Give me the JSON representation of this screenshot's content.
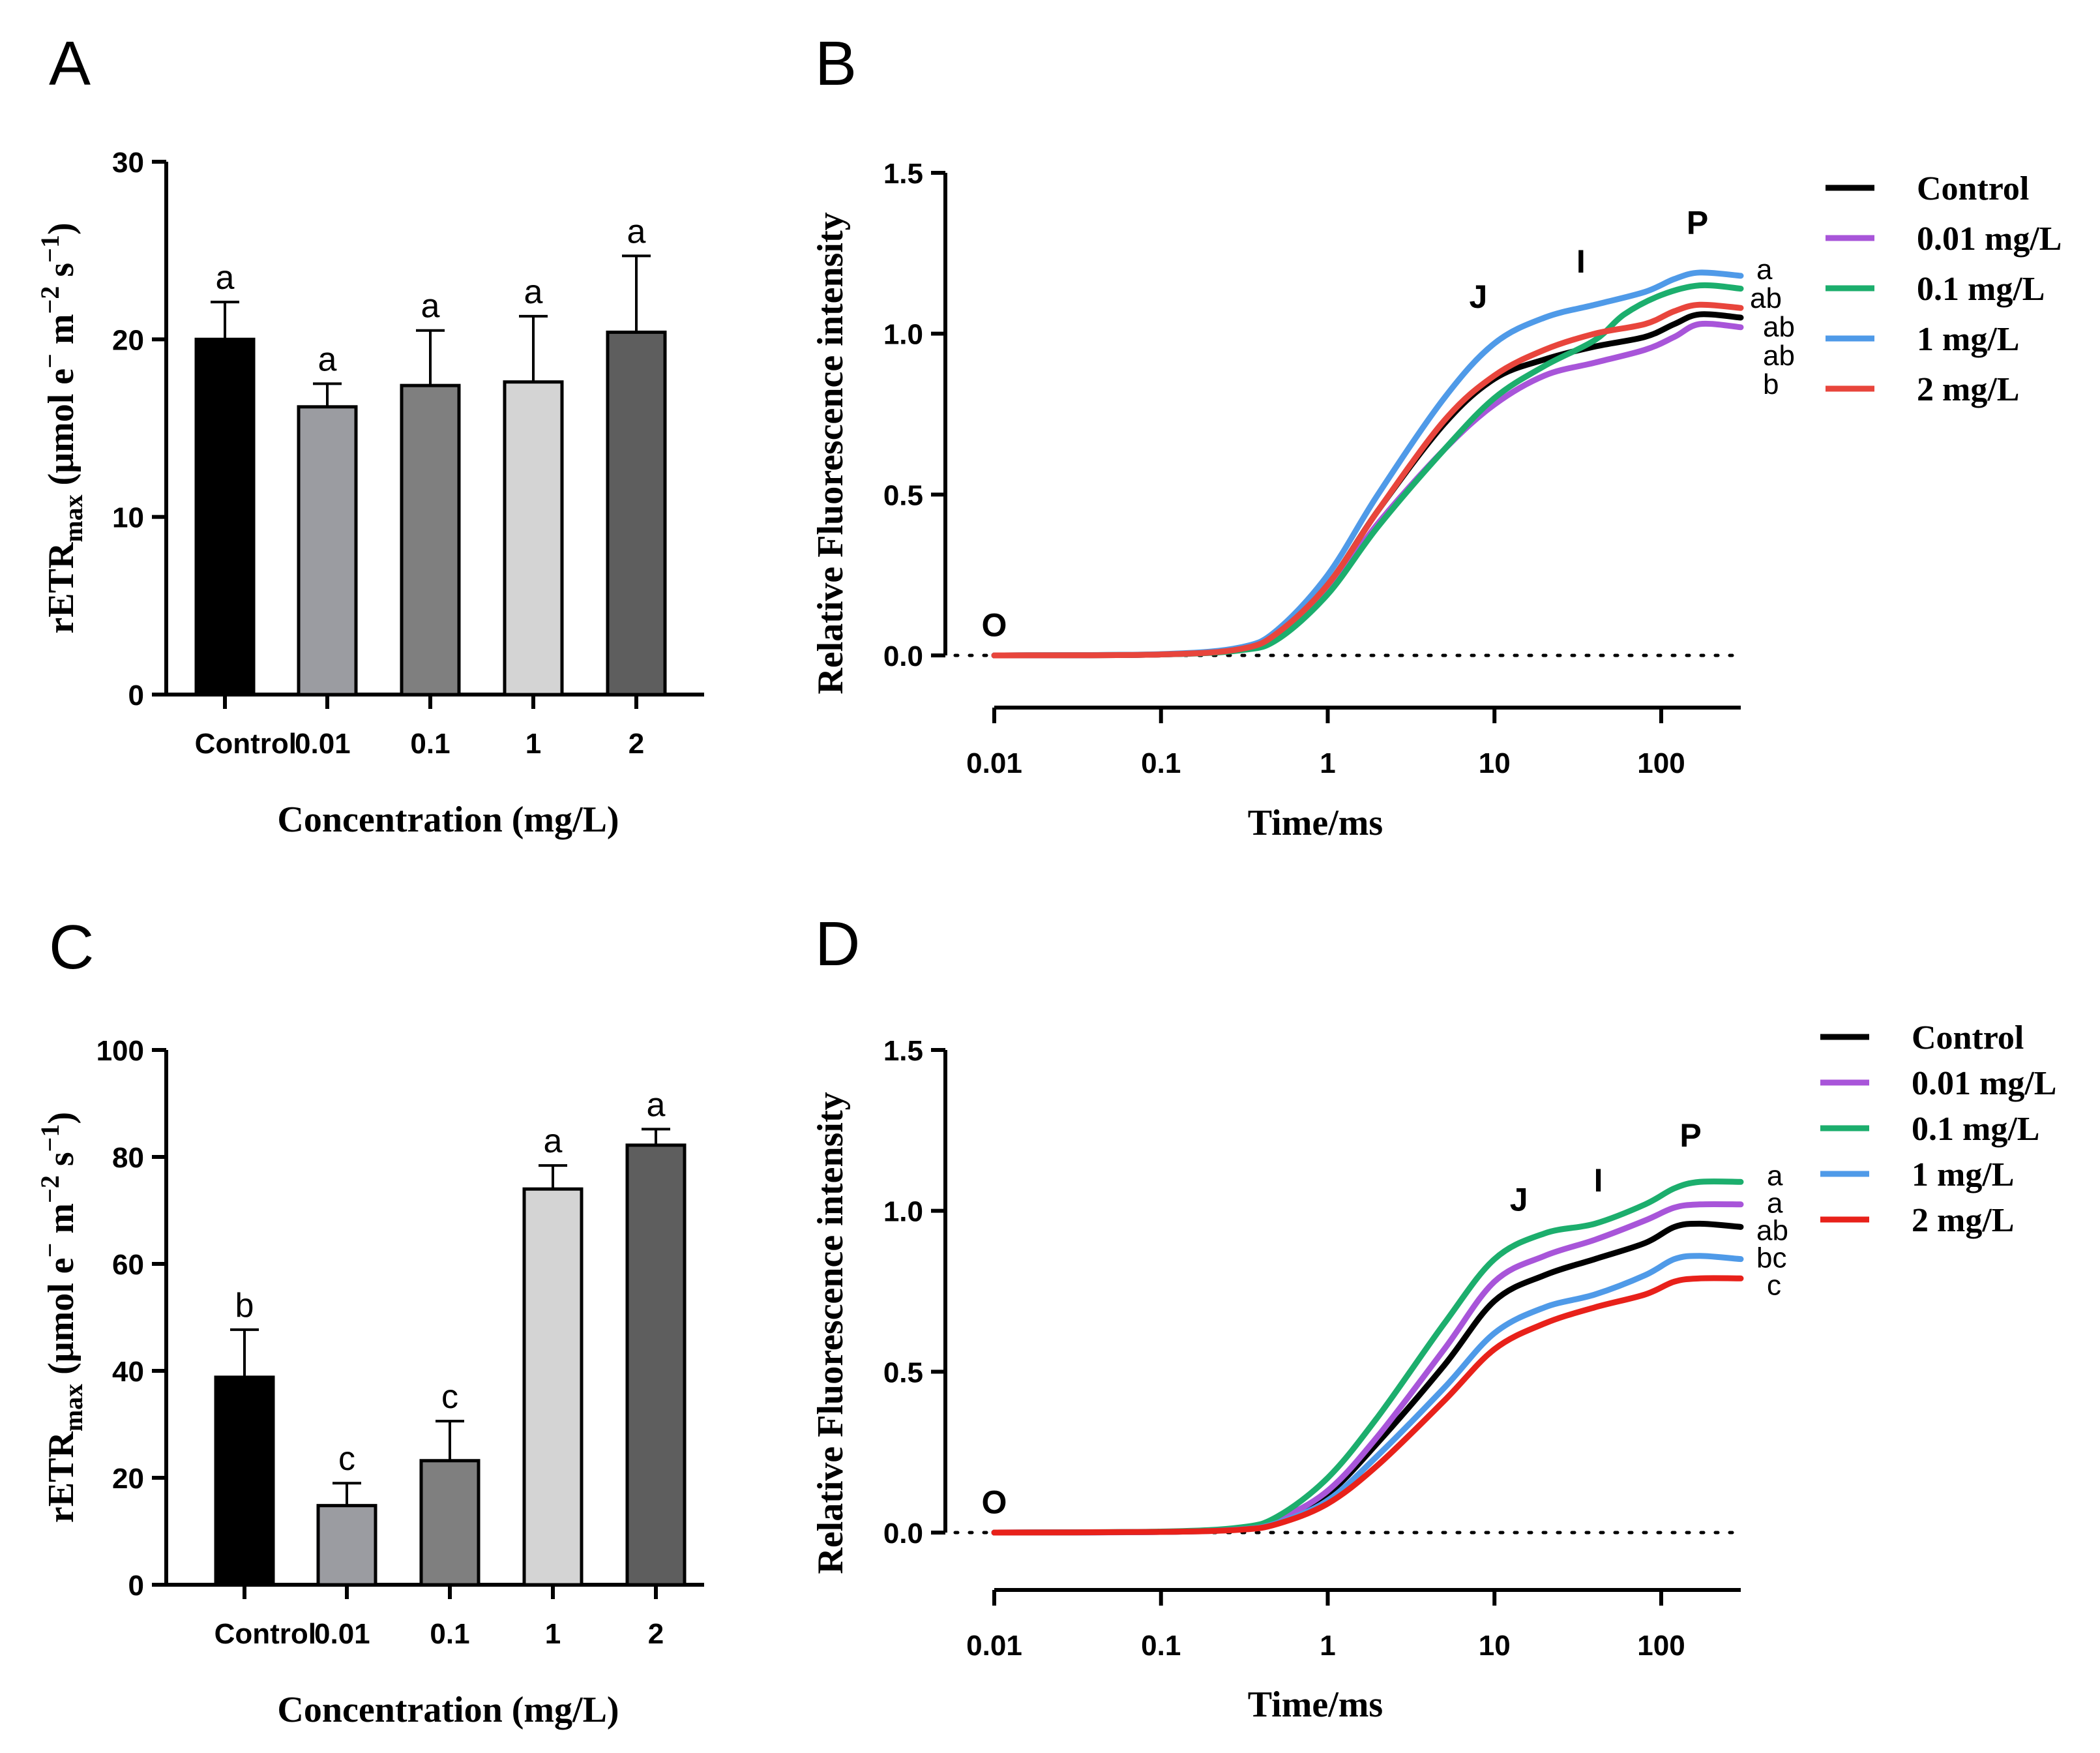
{
  "figure": {
    "panels": [
      "A",
      "B",
      "C",
      "D"
    ]
  },
  "chart_data": [
    {
      "panel": "A",
      "type": "bar",
      "ylabel_main": "rETR",
      "ylabel_sub": "max",
      "ylabel_unit": "(μmol e",
      "ylabel_unit2": " m",
      "ylabel_unit3": " s",
      "sup_minus": "−",
      "sup_m2": "−2",
      "sup_s1": "−1",
      "xlabel": "Concentration (mg/L)",
      "categories": [
        "Control",
        "0.01",
        "0.1",
        "1",
        "2"
      ],
      "values": [
        20.0,
        16.2,
        17.4,
        17.6,
        20.4
      ],
      "errors": [
        2.1,
        1.3,
        3.1,
        3.7,
        4.3
      ],
      "letters": [
        "a",
        "a",
        "a",
        "a",
        "a"
      ],
      "colors": [
        "#000000",
        "#9b9ca1",
        "#7f7f7f",
        "#d4d4d4",
        "#5e5e5e"
      ],
      "ylim": [
        0,
        30
      ],
      "yticks": [
        "0",
        "10",
        "20",
        "30"
      ]
    },
    {
      "panel": "B",
      "type": "line",
      "ylabel": "Relative Fluorescence intensity",
      "xlabel": "Time/ms",
      "xscale": "log",
      "xlim": [
        0.01,
        300
      ],
      "ylim": [
        0,
        1.5
      ],
      "xticks": [
        "0.01",
        "0.1",
        "1",
        "10",
        "100"
      ],
      "yticks": [
        "0.0",
        "0.5",
        "1.0",
        "1.5"
      ],
      "phases": [
        "O",
        "J",
        "I",
        "P"
      ],
      "series": [
        {
          "name": "Control",
          "color": "#000000",
          "x": [
            0.01,
            0.1,
            0.3,
            0.5,
            1,
            2,
            5,
            10,
            20,
            40,
            80,
            120,
            170,
            300
          ],
          "y": [
            0,
            0.003,
            0.02,
            0.07,
            0.22,
            0.45,
            0.72,
            0.86,
            0.92,
            0.96,
            0.99,
            1.03,
            1.06,
            1.05
          ]
        },
        {
          "name": "0.01 mg/L",
          "color": "#a855d9",
          "x": [
            0.01,
            0.1,
            0.3,
            0.5,
            1,
            2,
            5,
            10,
            20,
            40,
            80,
            120,
            170,
            300
          ],
          "y": [
            0,
            0.003,
            0.018,
            0.06,
            0.2,
            0.41,
            0.64,
            0.78,
            0.87,
            0.91,
            0.95,
            0.99,
            1.03,
            1.02
          ]
        },
        {
          "name": "0.1 mg/L",
          "color": "#1cae6d",
          "x": [
            0.01,
            0.1,
            0.3,
            0.5,
            1,
            2,
            5,
            10,
            20,
            40,
            60,
            100,
            170,
            300
          ],
          "y": [
            0,
            0.003,
            0.016,
            0.05,
            0.19,
            0.4,
            0.64,
            0.8,
            0.9,
            0.98,
            1.06,
            1.12,
            1.15,
            1.14
          ]
        },
        {
          "name": "1 mg/L",
          "color": "#4f9ae8",
          "x": [
            0.01,
            0.1,
            0.3,
            0.5,
            1,
            2,
            5,
            10,
            20,
            40,
            80,
            120,
            170,
            300
          ],
          "y": [
            0,
            0.004,
            0.025,
            0.08,
            0.25,
            0.5,
            0.8,
            0.97,
            1.05,
            1.09,
            1.13,
            1.17,
            1.19,
            1.18
          ]
        },
        {
          "name": "2 mg/L",
          "color": "#e8453c",
          "x": [
            0.01,
            0.1,
            0.3,
            0.5,
            1,
            2,
            5,
            10,
            20,
            40,
            80,
            120,
            170,
            300
          ],
          "y": [
            0,
            0.003,
            0.02,
            0.07,
            0.22,
            0.45,
            0.73,
            0.87,
            0.95,
            1.0,
            1.03,
            1.07,
            1.09,
            1.08
          ]
        }
      ],
      "end_letters": [
        "a",
        "ab",
        "ab",
        "ab",
        "b"
      ]
    },
    {
      "panel": "C",
      "type": "bar",
      "ylabel_main": "rETR",
      "ylabel_sub": "max",
      "ylabel_unit": "(μmol e",
      "ylabel_unit2": " m",
      "ylabel_unit3": " s",
      "sup_minus": "−",
      "sup_m2": "−2",
      "sup_s1": "−1",
      "xlabel": "Concentration (mg/L)",
      "categories": [
        "Control",
        "0.01",
        "0.1",
        "1",
        "2"
      ],
      "values": [
        38.8,
        14.8,
        23.2,
        74.0,
        82.2
      ],
      "errors": [
        8.9,
        4.2,
        7.4,
        4.4,
        3.0
      ],
      "letters": [
        "b",
        "c",
        "c",
        "a",
        "a"
      ],
      "colors": [
        "#000000",
        "#9b9ca1",
        "#7f7f7f",
        "#d4d4d4",
        "#5e5e5e"
      ],
      "ylim": [
        0,
        100
      ],
      "yticks": [
        "0",
        "20",
        "40",
        "60",
        "80",
        "100"
      ]
    },
    {
      "panel": "D",
      "type": "line",
      "ylabel": "Relative Fluorescence intensity",
      "xlabel": "Time/ms",
      "xscale": "log",
      "xlim": [
        0.01,
        300
      ],
      "ylim": [
        0,
        1.5
      ],
      "xticks": [
        "0.01",
        "0.1",
        "1",
        "10",
        "100"
      ],
      "yticks": [
        "0.0",
        "0.5",
        "1.0",
        "1.5"
      ],
      "phases": [
        "O",
        "J",
        "I",
        "P"
      ],
      "series": [
        {
          "name": "Control",
          "color": "#000000",
          "x": [
            0.01,
            0.1,
            0.3,
            0.5,
            1,
            2,
            5,
            10,
            20,
            40,
            80,
            120,
            170,
            300
          ],
          "y": [
            0,
            0.002,
            0.012,
            0.035,
            0.12,
            0.28,
            0.52,
            0.72,
            0.8,
            0.85,
            0.9,
            0.95,
            0.96,
            0.95
          ]
        },
        {
          "name": "0.01 mg/L",
          "color": "#a855d9",
          "x": [
            0.01,
            0.1,
            0.3,
            0.5,
            1,
            2,
            5,
            10,
            20,
            40,
            80,
            120,
            170,
            300
          ],
          "y": [
            0,
            0.002,
            0.013,
            0.04,
            0.13,
            0.3,
            0.57,
            0.78,
            0.86,
            0.91,
            0.97,
            1.01,
            1.02,
            1.02
          ]
        },
        {
          "name": "0.1 mg/L",
          "color": "#1cae6d",
          "x": [
            0.01,
            0.1,
            0.3,
            0.5,
            1,
            2,
            5,
            10,
            20,
            40,
            80,
            120,
            170,
            300
          ],
          "y": [
            0,
            0.003,
            0.016,
            0.05,
            0.17,
            0.36,
            0.65,
            0.85,
            0.93,
            0.96,
            1.02,
            1.07,
            1.09,
            1.09
          ]
        },
        {
          "name": "1 mg/L",
          "color": "#4f9ae8",
          "x": [
            0.01,
            0.1,
            0.3,
            0.5,
            1,
            2,
            5,
            10,
            20,
            40,
            80,
            120,
            170,
            300
          ],
          "y": [
            0,
            0.002,
            0.01,
            0.03,
            0.1,
            0.24,
            0.45,
            0.62,
            0.7,
            0.74,
            0.8,
            0.85,
            0.86,
            0.85
          ]
        },
        {
          "name": "2 mg/L",
          "color": "#e8211a",
          "x": [
            0.01,
            0.1,
            0.3,
            0.5,
            1,
            2,
            5,
            10,
            20,
            40,
            80,
            120,
            170,
            300
          ],
          "y": [
            0,
            0.002,
            0.009,
            0.027,
            0.09,
            0.21,
            0.41,
            0.57,
            0.65,
            0.7,
            0.74,
            0.78,
            0.79,
            0.79
          ]
        }
      ],
      "end_letters": [
        "a",
        "a",
        "ab",
        "bc",
        "c"
      ]
    }
  ]
}
